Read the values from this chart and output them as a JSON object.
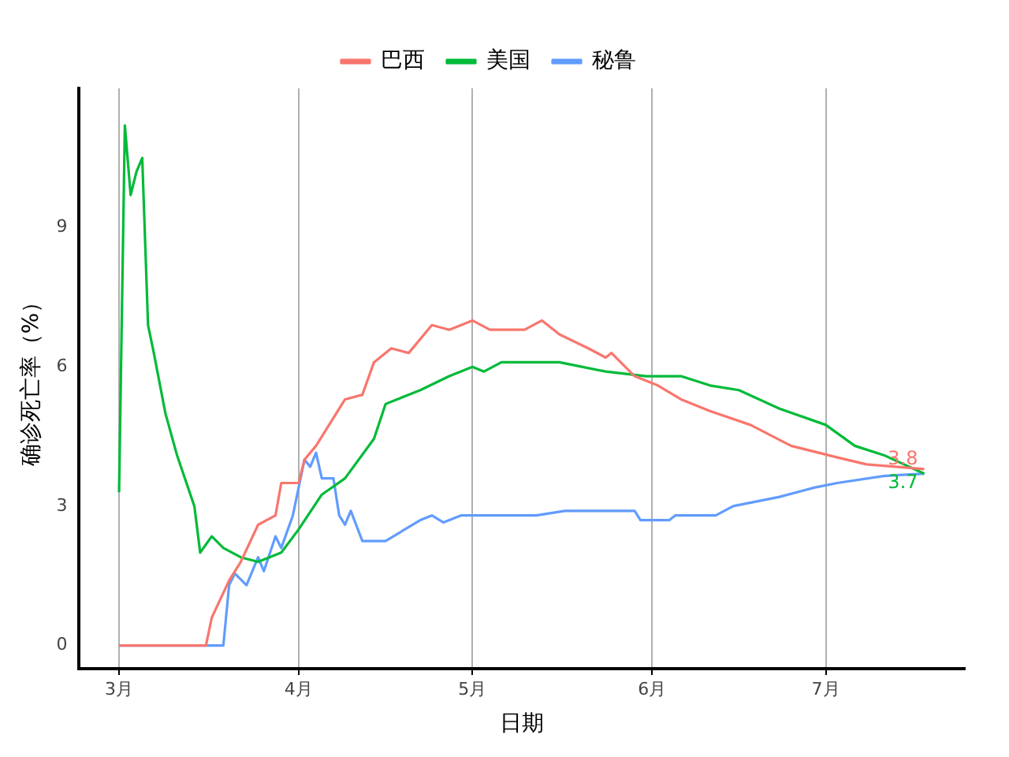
{
  "chart_data": {
    "type": "line",
    "xlabel": "日期",
    "ylabel": "确诊死亡率（%）",
    "legend": "top",
    "grid": "x",
    "xlim": [
      "--02-23",
      "--07-25"
    ],
    "xticks": [
      {
        "value": "--03-01",
        "label": "3月"
      },
      {
        "value": "--04-01",
        "label": "4月"
      },
      {
        "value": "--05-01",
        "label": "5月"
      },
      {
        "value": "--06-01",
        "label": "6月"
      },
      {
        "value": "--07-01",
        "label": "7月"
      }
    ],
    "ylim": [
      -0.5,
      12
    ],
    "yticks": [
      0,
      3,
      6,
      9
    ],
    "series": [
      {
        "name": "巴西",
        "color": "#f8766d",
        "x": [
          "--03-01",
          "--03-16",
          "--03-17",
          "--03-20",
          "--03-22",
          "--03-25",
          "--03-28",
          "--03-29",
          "--04-01",
          "--04-02",
          "--04-04",
          "--04-09",
          "--04-12",
          "--04-14",
          "--04-17",
          "--04-20",
          "--04-24",
          "--04-27",
          "--05-01",
          "--05-04",
          "--05-10",
          "--05-13",
          "--05-16",
          "--05-21",
          "--05-24",
          "--05-25",
          "--05-29",
          "--06-02",
          "--06-06",
          "--06-11",
          "--06-18",
          "--06-25",
          "--07-03",
          "--07-08",
          "--07-18"
        ],
        "values": [
          0,
          0,
          0.6,
          1.4,
          1.8,
          2.6,
          2.8,
          3.5,
          3.5,
          4.0,
          4.3,
          5.3,
          5.4,
          6.1,
          6.4,
          6.3,
          6.9,
          6.8,
          7.0,
          6.8,
          6.8,
          7.0,
          6.7,
          6.4,
          6.2,
          6.3,
          5.8,
          5.6,
          5.3,
          5.05,
          4.75,
          4.3,
          4.05,
          3.9,
          3.8
        ]
      },
      {
        "name": "美国",
        "color": "#00ba38",
        "x": [
          "--03-01",
          "--03-02",
          "--03-03",
          "--03-04",
          "--03-05",
          "--03-06",
          "--03-07",
          "--03-09",
          "--03-11",
          "--03-14",
          "--03-15",
          "--03-17",
          "--03-19",
          "--03-22",
          "--03-25",
          "--03-29",
          "--04-01",
          "--04-05",
          "--04-09",
          "--04-14",
          "--04-16",
          "--04-18",
          "--04-22",
          "--04-27",
          "--05-01",
          "--05-03",
          "--05-06",
          "--05-16",
          "--05-24",
          "--05-31",
          "--06-06",
          "--06-11",
          "--06-16",
          "--06-23",
          "--07-01",
          "--07-06",
          "--07-11",
          "--07-18"
        ],
        "values": [
          3.3,
          11.2,
          9.7,
          10.2,
          10.5,
          6.9,
          6.3,
          5.0,
          4.1,
          3.0,
          2.0,
          2.35,
          2.1,
          1.9,
          1.8,
          2.0,
          2.5,
          3.25,
          3.6,
          4.45,
          5.2,
          5.3,
          5.5,
          5.8,
          6.0,
          5.9,
          6.1,
          6.1,
          5.9,
          5.8,
          5.8,
          5.6,
          5.5,
          5.1,
          4.75,
          4.3,
          4.1,
          3.7
        ]
      },
      {
        "name": "秘鲁",
        "color": "#619cff",
        "x": [
          "--03-01",
          "--03-19",
          "--03-20",
          "--03-21",
          "--03-23",
          "--03-25",
          "--03-26",
          "--03-28",
          "--03-29",
          "--03-31",
          "--04-02",
          "--04-03",
          "--04-04",
          "--04-05",
          "--04-07",
          "--04-08",
          "--04-09",
          "--04-10",
          "--04-12",
          "--04-16",
          "--04-22",
          "--04-24",
          "--04-26",
          "--04-29",
          "--05-12",
          "--05-17",
          "--05-29",
          "--05-30",
          "--06-04",
          "--06-05",
          "--06-12",
          "--06-15",
          "--06-23",
          "--06-29",
          "--07-03",
          "--07-11",
          "--07-18"
        ],
        "values": [
          0,
          0,
          1.3,
          1.55,
          1.3,
          1.9,
          1.6,
          2.35,
          2.1,
          2.8,
          4.0,
          3.85,
          4.15,
          3.6,
          3.6,
          2.8,
          2.6,
          2.9,
          2.25,
          2.25,
          2.7,
          2.8,
          2.65,
          2.8,
          2.8,
          2.9,
          2.9,
          2.7,
          2.7,
          2.8,
          2.8,
          3.0,
          3.2,
          3.4,
          3.5,
          3.65,
          3.7
        ]
      }
    ],
    "annotations": [
      {
        "text": "3.8",
        "x": "--07-18",
        "y": 3.8
      },
      {
        "text": "3.7",
        "x": "--07-18",
        "y": 3.7
      }
    ]
  }
}
